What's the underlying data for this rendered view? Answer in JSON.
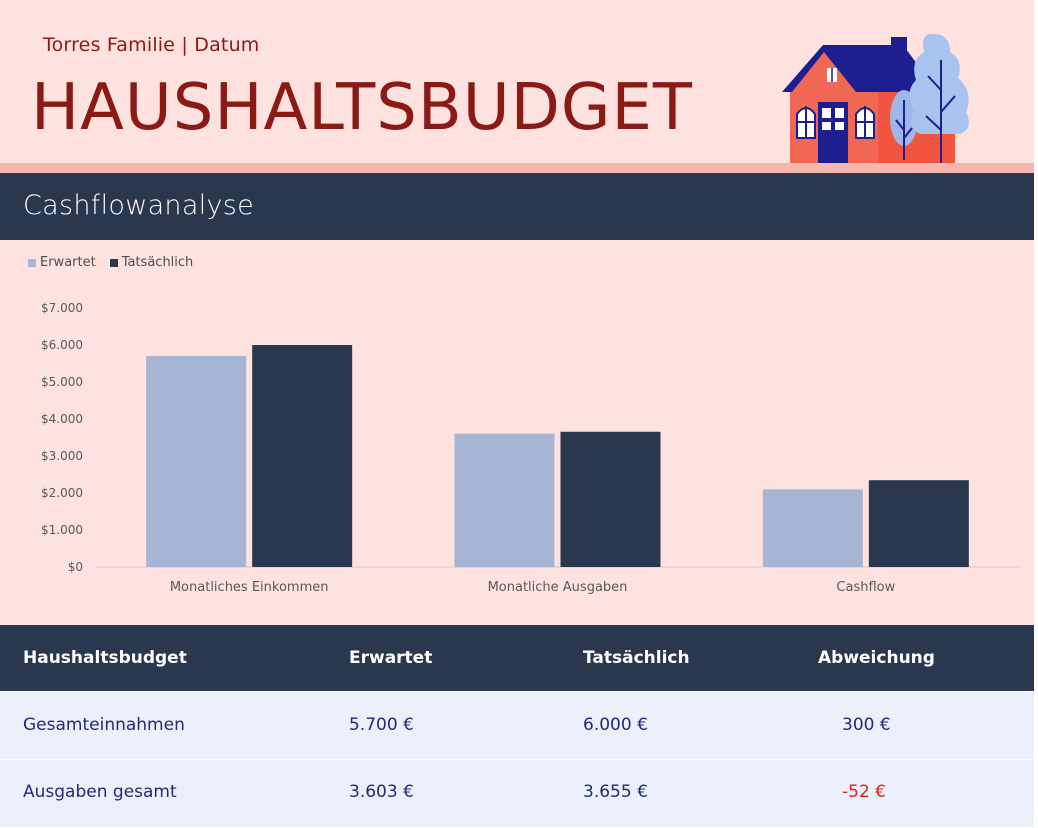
{
  "header": {
    "subtitle": "Torres Familie | Datum",
    "title": "HAUSHALTSBUDGET"
  },
  "section": {
    "title": "Cashflowanalyse"
  },
  "chart_data": {
    "type": "bar",
    "categories": [
      "Monatliches Einkommen",
      "Monatliche Ausgaben",
      "Cashflow"
    ],
    "series": [
      {
        "name": "Erwartet",
        "values": [
          5700,
          3603,
          2097
        ],
        "color": "#a5b5d3"
      },
      {
        "name": "Tatsächlich",
        "values": [
          6000,
          3655,
          2345
        ],
        "color": "#29374f"
      }
    ],
    "ylim": [
      0,
      7000
    ],
    "yticks": [
      "$0",
      "$1.000",
      "$2.000",
      "$3.000",
      "$4.000",
      "$5.000",
      "$6.000",
      "$7.000"
    ],
    "legend_position": "top-left",
    "grid": false
  },
  "table": {
    "headers": [
      "Haushaltsbudget",
      "Erwartet",
      "Tatsächlich",
      "Abweichung"
    ],
    "rows": [
      {
        "label": "Gesamteinnahmen",
        "expected": "5.700 €",
        "actual": "6.000 €",
        "variance": "300 €",
        "negative": false
      },
      {
        "label": "Ausgaben gesamt",
        "expected": "3.603 €",
        "actual": "3.655 €",
        "variance": "-52 €",
        "negative": true
      }
    ]
  },
  "colors": {
    "header_bg": "#fde2df",
    "accent": "#8b1a14",
    "navy": "#29374f",
    "light_blue": "#a5b5d3",
    "row_bg": "#ecf0fb",
    "negative": "#e0201a"
  },
  "icons": {
    "house": "house-illustration"
  }
}
